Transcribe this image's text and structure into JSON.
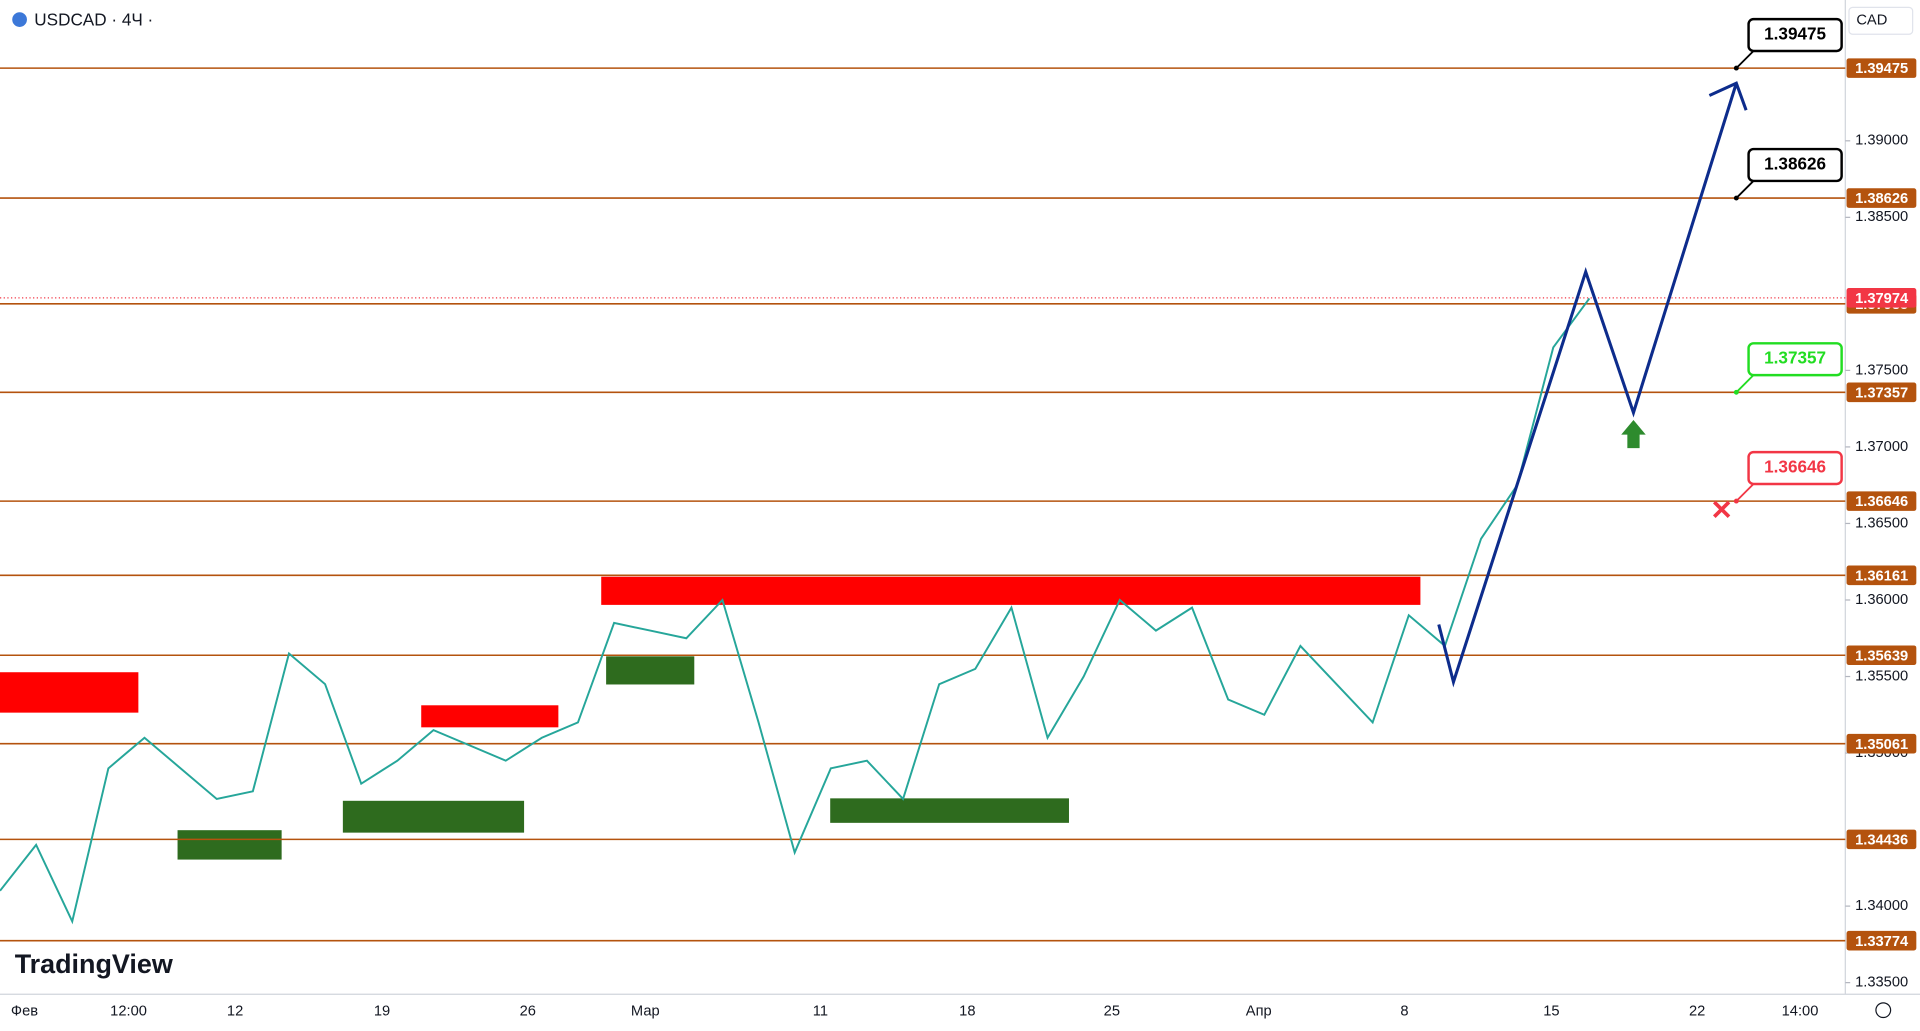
{
  "header": {
    "symbol": "USDCAD · 4Ч ·",
    "currency": "CAD",
    "logo": "TradingView"
  },
  "chart_data": {
    "type": "line",
    "color": "#26a69a",
    "values": [
      1.341,
      1.344,
      1.339,
      1.349,
      1.351,
      1.349,
      1.347,
      1.3475,
      1.3565,
      1.3545,
      1.348,
      1.3495,
      1.3515,
      1.3505,
      1.3495,
      1.351,
      1.352,
      1.3585,
      1.358,
      1.3575,
      1.36,
      1.352,
      1.3435,
      1.349,
      1.3495,
      1.347,
      1.3545,
      1.3555,
      1.3595,
      1.351,
      1.355,
      1.36,
      1.358,
      1.3595,
      1.3535,
      1.3525,
      1.357,
      1.3545,
      1.352,
      1.359,
      1.357,
      1.364,
      1.3675,
      1.3765,
      1.3797
    ],
    "x_labels": [
      "Фев",
      "12:00",
      "12",
      "19",
      "26",
      "Мар",
      "11",
      "18",
      "25",
      "Апр",
      "8",
      "15",
      "22",
      "14:00"
    ],
    "ylim": [
      1.3344,
      1.3992
    ],
    "yticks": [
      {
        "value": 1.39,
        "label": "1.39000"
      },
      {
        "value": 1.385,
        "label": "1.38500"
      },
      {
        "value": 1.375,
        "label": "1.37500"
      },
      {
        "value": 1.37,
        "label": "1.37000"
      },
      {
        "value": 1.365,
        "label": "1.36500"
      },
      {
        "value": 1.36,
        "label": "1.36000"
      },
      {
        "value": 1.355,
        "label": "1.35500"
      },
      {
        "value": 1.35,
        "label": "1.35000"
      },
      {
        "value": 1.34,
        "label": "1.34000"
      },
      {
        "value": 1.335,
        "label": "1.33500"
      }
    ],
    "levels": [
      1.39475,
      1.38626,
      1.37935,
      1.37357,
      1.36646,
      1.36161,
      1.35639,
      1.35061,
      1.34436,
      1.33774
    ],
    "level_color": "#b4530e",
    "current_price": 1.37974,
    "current_color": "#f23645",
    "callouts": [
      {
        "value": 1.39475,
        "color": "#000000"
      },
      {
        "value": 1.38626,
        "color": "#000000"
      },
      {
        "value": 1.37357,
        "color": "#22dd22"
      },
      {
        "value": 1.36646,
        "color": "#f23645"
      }
    ],
    "projection": [
      1.3584,
      1.35464,
      1.38144,
      1.37224,
      1.39376
    ],
    "projection_color": "#0d2c8c",
    "zones": [
      {
        "from": 1.35528,
        "to": 1.35264,
        "color": "#ff0000"
      },
      {
        "from": 1.36152,
        "to": 1.35968,
        "color": "#ff0000"
      },
      {
        "from": 1.35312,
        "to": 1.35168,
        "color": "#ff0000"
      },
      {
        "from": 1.35632,
        "to": 1.35448,
        "color": "#2e6b1e"
      },
      {
        "from": 1.34496,
        "to": 1.34304,
        "color": "#2e6b1e"
      },
      {
        "from": 1.34688,
        "to": 1.3448,
        "color": "#2e6b1e"
      },
      {
        "from": 1.34704,
        "to": 1.34544,
        "color": "#2e6b1e"
      }
    ]
  }
}
